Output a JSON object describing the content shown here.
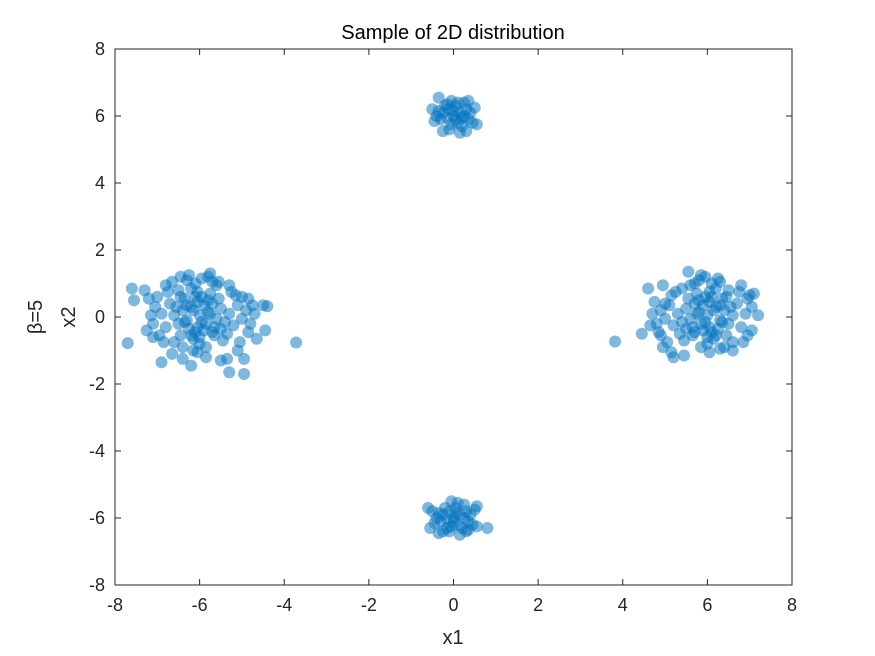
{
  "chart_data": {
    "type": "scatter",
    "title": "Sample of 2D distribution",
    "xlabel": "x1",
    "ylabel_lines": [
      "β=5",
      "x2"
    ],
    "xlim": [
      -8,
      8
    ],
    "ylim": [
      -8,
      8
    ],
    "xticks": [
      -8,
      -6,
      -4,
      -2,
      0,
      2,
      4,
      6,
      8
    ],
    "yticks": [
      -8,
      -6,
      -4,
      -2,
      0,
      2,
      4,
      6,
      8
    ],
    "xtick_labels": [
      "-8",
      "-6",
      "-4",
      "-2",
      "0",
      "2",
      "4",
      "6",
      "8"
    ],
    "ytick_labels": [
      "-8",
      "-6",
      "-4",
      "-2",
      "0",
      "2",
      "4",
      "6",
      "8"
    ],
    "grid": false,
    "box": true,
    "marker_color": "#0072BD",
    "marker_alpha": 0.5,
    "series": [
      {
        "points": [
          [
            -6.0,
            0.05
          ],
          [
            -6.2,
            0.3
          ],
          [
            -5.85,
            -0.2
          ],
          [
            -6.3,
            -0.1
          ],
          [
            -5.7,
            0.4
          ],
          [
            -6.1,
            -0.45
          ],
          [
            -5.95,
            0.6
          ],
          [
            -6.4,
            0.2
          ],
          [
            -5.6,
            -0.05
          ],
          [
            -6.25,
            -0.35
          ],
          [
            -5.8,
            0.15
          ],
          [
            -6.05,
            0.45
          ],
          [
            -6.5,
            -0.2
          ],
          [
            -5.5,
            0.25
          ],
          [
            -6.15,
            -0.65
          ],
          [
            -5.9,
            -0.4
          ],
          [
            -6.35,
            0.55
          ],
          [
            -5.75,
            0.7
          ],
          [
            -6.6,
            0.05
          ],
          [
            -5.4,
            -0.15
          ],
          [
            -6.0,
            -0.8
          ],
          [
            -6.2,
            0.85
          ],
          [
            -5.65,
            -0.55
          ],
          [
            -6.45,
            -0.55
          ],
          [
            -5.55,
            0.55
          ],
          [
            -6.7,
            0.4
          ],
          [
            -5.3,
            0.1
          ],
          [
            -6.1,
            1.0
          ],
          [
            -5.85,
            -0.9
          ],
          [
            -6.8,
            -0.3
          ],
          [
            -5.2,
            -0.25
          ],
          [
            -6.3,
            1.1
          ],
          [
            -5.7,
            1.05
          ],
          [
            -6.5,
            0.8
          ],
          [
            -5.45,
            -0.7
          ],
          [
            -6.9,
            0.1
          ],
          [
            -5.1,
            0.35
          ],
          [
            -6.05,
            -1.05
          ],
          [
            -6.4,
            -0.9
          ],
          [
            -5.6,
            0.95
          ],
          [
            -6.95,
            -0.55
          ],
          [
            -5.0,
            -0.05
          ],
          [
            -6.75,
            0.75
          ],
          [
            -5.25,
            0.75
          ],
          [
            -6.25,
            1.25
          ],
          [
            -5.8,
            1.2
          ],
          [
            -6.6,
            -0.75
          ],
          [
            -5.35,
            -0.5
          ],
          [
            -7.05,
            0.3
          ],
          [
            -4.9,
            0.2
          ],
          [
            -6.15,
            0.2
          ],
          [
            -5.95,
            -0.15
          ],
          [
            -6.35,
            -0.15
          ],
          [
            -5.75,
            0.1
          ],
          [
            -6.55,
            0.3
          ],
          [
            -5.65,
            -0.3
          ],
          [
            -6.05,
            0.75
          ],
          [
            -6.45,
            0.6
          ],
          [
            -5.5,
            -0.35
          ],
          [
            -6.2,
            -0.55
          ],
          [
            -7.0,
            0.6
          ],
          [
            -7.1,
            -0.2
          ],
          [
            -7.15,
            0.05
          ],
          [
            -4.8,
            -0.2
          ],
          [
            -4.7,
            0.1
          ],
          [
            -4.75,
            0.35
          ],
          [
            -4.85,
            -0.45
          ],
          [
            -5.05,
            -0.75
          ],
          [
            -5.15,
            0.65
          ],
          [
            -6.85,
            -0.75
          ],
          [
            -7.2,
            0.55
          ],
          [
            -7.25,
            -0.4
          ],
          [
            -7.3,
            0.8
          ],
          [
            -7.6,
            0.85
          ],
          [
            -7.55,
            0.5
          ],
          [
            -7.7,
            -0.78
          ],
          [
            -7.1,
            -0.6
          ],
          [
            -4.5,
            0.35
          ],
          [
            -4.4,
            0.32
          ],
          [
            -4.45,
            -0.4
          ],
          [
            -4.65,
            -0.65
          ],
          [
            -3.72,
            -0.76
          ],
          [
            -5.5,
            -1.3
          ],
          [
            -6.2,
            -1.45
          ],
          [
            -5.35,
            -1.25
          ],
          [
            -4.95,
            -1.25
          ],
          [
            -4.95,
            -1.7
          ],
          [
            -5.3,
            -1.65
          ],
          [
            -6.9,
            -1.35
          ],
          [
            -6.45,
            1.2
          ],
          [
            -6.4,
            -1.25
          ],
          [
            -5.55,
            1.05
          ],
          [
            -5.75,
            1.3
          ],
          [
            -5.95,
            1.15
          ],
          [
            -5.3,
            0.95
          ],
          [
            -6.65,
            1.05
          ],
          [
            -6.8,
            0.95
          ],
          [
            -5.0,
            0.6
          ],
          [
            -4.85,
            0.55
          ],
          [
            -5.1,
            -1.0
          ],
          [
            -6.15,
            -1.0
          ],
          [
            -6.65,
            -1.1
          ],
          [
            -5.85,
            -1.2
          ],
          [
            -6.05,
            -0.3
          ],
          [
            -5.9,
            0.35
          ],
          [
            -6.3,
            0.35
          ],
          [
            -5.7,
            -0.45
          ],
          [
            -6.1,
            0.6
          ],
          [
            -6.0,
            -0.6
          ],
          [
            -5.8,
            0.5
          ],
          [
            0.0,
            6.0
          ],
          [
            0.15,
            6.1
          ],
          [
            -0.15,
            5.95
          ],
          [
            0.1,
            5.8
          ],
          [
            -0.1,
            6.2
          ],
          [
            0.25,
            6.0
          ],
          [
            -0.25,
            6.1
          ],
          [
            0.05,
            6.3
          ],
          [
            -0.05,
            5.75
          ],
          [
            0.3,
            6.2
          ],
          [
            -0.3,
            5.9
          ],
          [
            0.2,
            5.7
          ],
          [
            -0.2,
            6.3
          ],
          [
            0.35,
            5.9
          ],
          [
            -0.35,
            6.15
          ],
          [
            0.1,
            6.4
          ],
          [
            -0.1,
            5.6
          ],
          [
            0.4,
            6.1
          ],
          [
            -0.4,
            6.0
          ],
          [
            0.25,
            6.4
          ],
          [
            -0.05,
            6.45
          ],
          [
            0.45,
            5.8
          ],
          [
            -0.45,
            5.85
          ],
          [
            0.5,
            6.25
          ],
          [
            -0.5,
            6.2
          ],
          [
            0.55,
            5.75
          ],
          [
            -0.35,
            6.55
          ],
          [
            0.3,
            5.55
          ],
          [
            -0.25,
            5.55
          ],
          [
            0.15,
            5.5
          ],
          [
            0.0,
            6.15
          ],
          [
            0.05,
            5.9
          ],
          [
            -0.15,
            6.35
          ],
          [
            0.35,
            6.45
          ],
          [
            0.2,
            5.95
          ],
          [
            6.0,
            0.05
          ],
          [
            6.2,
            0.3
          ],
          [
            5.85,
            -0.2
          ],
          [
            6.3,
            -0.1
          ],
          [
            5.7,
            0.4
          ],
          [
            6.1,
            -0.45
          ],
          [
            5.95,
            0.6
          ],
          [
            6.4,
            0.2
          ],
          [
            5.6,
            -0.05
          ],
          [
            6.25,
            -0.35
          ],
          [
            5.8,
            0.15
          ],
          [
            6.05,
            0.45
          ],
          [
            6.5,
            -0.2
          ],
          [
            5.5,
            0.25
          ],
          [
            6.15,
            -0.65
          ],
          [
            5.9,
            -0.4
          ],
          [
            6.35,
            0.55
          ],
          [
            5.75,
            0.7
          ],
          [
            6.6,
            0.05
          ],
          [
            5.4,
            -0.15
          ],
          [
            6.0,
            -0.8
          ],
          [
            6.2,
            0.85
          ],
          [
            5.65,
            -0.55
          ],
          [
            6.45,
            -0.55
          ],
          [
            5.55,
            0.55
          ],
          [
            6.7,
            0.4
          ],
          [
            5.3,
            0.1
          ],
          [
            6.1,
            1.0
          ],
          [
            5.85,
            -0.9
          ],
          [
            6.8,
            -0.3
          ],
          [
            5.2,
            -0.25
          ],
          [
            6.3,
            1.05
          ],
          [
            5.7,
            1.0
          ],
          [
            6.5,
            0.8
          ],
          [
            5.45,
            -0.7
          ],
          [
            6.9,
            0.1
          ],
          [
            5.1,
            0.35
          ],
          [
            6.05,
            -1.05
          ],
          [
            6.4,
            -0.9
          ],
          [
            5.6,
            0.95
          ],
          [
            6.95,
            -0.55
          ],
          [
            5.0,
            -0.05
          ],
          [
            6.75,
            0.75
          ],
          [
            5.25,
            0.75
          ],
          [
            6.25,
            1.15
          ],
          [
            5.8,
            1.1
          ],
          [
            6.6,
            -0.75
          ],
          [
            5.35,
            -0.5
          ],
          [
            7.05,
            0.3
          ],
          [
            4.9,
            0.2
          ],
          [
            6.15,
            0.2
          ],
          [
            5.95,
            -0.15
          ],
          [
            6.35,
            -0.15
          ],
          [
            5.75,
            0.1
          ],
          [
            6.55,
            0.3
          ],
          [
            5.65,
            -0.3
          ],
          [
            6.05,
            0.75
          ],
          [
            6.45,
            0.6
          ],
          [
            5.5,
            -0.35
          ],
          [
            6.2,
            -0.55
          ],
          [
            7.1,
            0.7
          ],
          [
            7.0,
            0.65
          ],
          [
            7.2,
            0.05
          ],
          [
            4.8,
            -0.2
          ],
          [
            4.7,
            0.1
          ],
          [
            4.75,
            0.45
          ],
          [
            4.85,
            -0.45
          ],
          [
            5.05,
            -0.75
          ],
          [
            5.15,
            0.65
          ],
          [
            6.85,
            -0.75
          ],
          [
            7.05,
            -0.4
          ],
          [
            4.6,
            0.85
          ],
          [
            4.95,
            0.95
          ],
          [
            5.55,
            1.35
          ],
          [
            5.95,
            1.2
          ],
          [
            4.45,
            -0.5
          ],
          [
            4.65,
            -0.25
          ],
          [
            3.82,
            -0.73
          ],
          [
            4.95,
            -0.9
          ],
          [
            5.2,
            -1.2
          ],
          [
            5.45,
            -1.15
          ],
          [
            5.15,
            -1.05
          ],
          [
            6.8,
            0.95
          ],
          [
            6.6,
            -1.0
          ],
          [
            6.3,
            -0.95
          ],
          [
            5.85,
            1.25
          ],
          [
            6.95,
            0.55
          ],
          [
            5.4,
            0.85
          ],
          [
            5.0,
            0.4
          ],
          [
            4.9,
            -0.55
          ],
          [
            6.05,
            -0.3
          ],
          [
            5.9,
            0.35
          ],
          [
            6.3,
            0.35
          ],
          [
            5.7,
            -0.45
          ],
          [
            6.1,
            0.6
          ],
          [
            6.0,
            -0.6
          ],
          [
            5.8,
            0.5
          ],
          [
            0.0,
            -6.0
          ],
          [
            0.15,
            -5.9
          ],
          [
            -0.15,
            -6.05
          ],
          [
            0.1,
            -6.2
          ],
          [
            -0.1,
            -5.8
          ],
          [
            0.25,
            -6.0
          ],
          [
            -0.25,
            -5.9
          ],
          [
            0.05,
            -5.7
          ],
          [
            -0.05,
            -6.25
          ],
          [
            0.3,
            -5.8
          ],
          [
            -0.3,
            -6.1
          ],
          [
            0.2,
            -6.3
          ],
          [
            -0.2,
            -5.7
          ],
          [
            0.35,
            -6.1
          ],
          [
            -0.35,
            -5.85
          ],
          [
            0.1,
            -5.55
          ],
          [
            -0.1,
            -6.4
          ],
          [
            0.4,
            -5.9
          ],
          [
            -0.4,
            -6.0
          ],
          [
            0.25,
            -5.6
          ],
          [
            -0.05,
            -5.5
          ],
          [
            0.45,
            -6.2
          ],
          [
            -0.45,
            -6.15
          ],
          [
            0.5,
            -5.75
          ],
          [
            -0.5,
            -5.8
          ],
          [
            0.55,
            -6.25
          ],
          [
            -0.35,
            -6.45
          ],
          [
            0.3,
            -6.4
          ],
          [
            -0.25,
            -6.4
          ],
          [
            0.15,
            -6.5
          ],
          [
            -0.6,
            -5.7
          ],
          [
            -0.55,
            -6.3
          ],
          [
            0.8,
            -6.3
          ],
          [
            0.55,
            -5.65
          ],
          [
            0.0,
            -6.1
          ],
          [
            0.05,
            -5.85
          ],
          [
            -0.15,
            -6.3
          ],
          [
            0.35,
            -6.35
          ]
        ]
      }
    ]
  }
}
